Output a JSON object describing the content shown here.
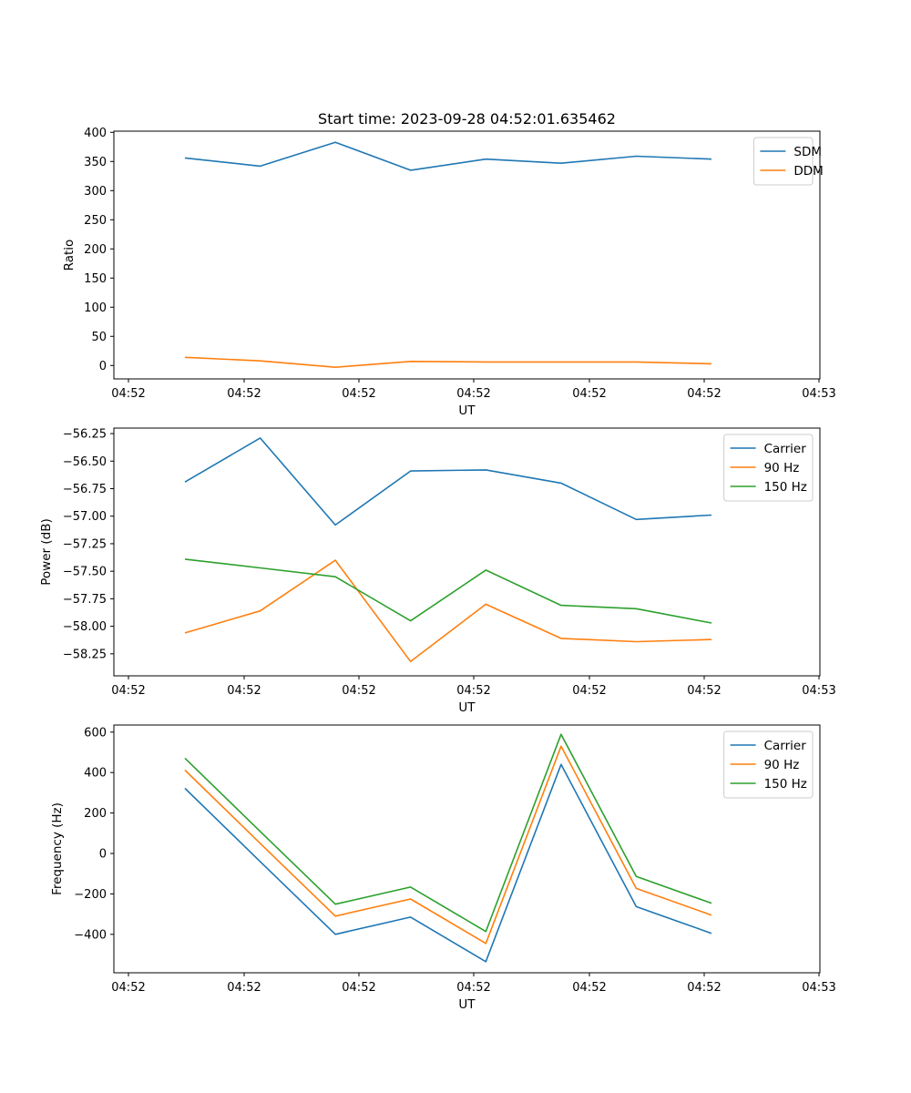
{
  "figure": {
    "title": "Start time: 2023-09-28 04:52:01.635462"
  },
  "x_ticks": [
    "04:52",
    "04:52",
    "04:52",
    "04:52",
    "04:52",
    "04:52",
    "04:53"
  ],
  "chart_data": [
    {
      "type": "line",
      "title": "Start time: 2023-09-28 04:52:01.635462",
      "xlabel": "UT",
      "ylabel": "Ratio",
      "xlim": [
        -0.2,
        8.8
      ],
      "ylim": [
        -23,
        402
      ],
      "x": [
        1,
        2,
        3,
        4,
        5,
        6,
        7,
        8
      ],
      "yticks": [
        0,
        50,
        100,
        150,
        200,
        250,
        300,
        350,
        400
      ],
      "ytick_labels": [
        "0",
        "50",
        "100",
        "150",
        "200",
        "250",
        "300",
        "350",
        "400"
      ],
      "legend_position": "top-right",
      "series": [
        {
          "name": "SDM",
          "color": "#1f77b4",
          "values": [
            356,
            342,
            383,
            335,
            354,
            347,
            359,
            354
          ]
        },
        {
          "name": "DDM",
          "color": "#ff7f0e",
          "values": [
            14,
            8,
            -3,
            7,
            6,
            6,
            6,
            3
          ]
        }
      ]
    },
    {
      "type": "line",
      "title": "",
      "xlabel": "UT",
      "ylabel": "Power (dB)",
      "xlim": [
        -0.2,
        8.8
      ],
      "ylim": [
        -58.45,
        -56.2
      ],
      "x": [
        1,
        2,
        3,
        4,
        5,
        6,
        7,
        8
      ],
      "yticks": [
        -56.25,
        -56.5,
        -56.75,
        -57.0,
        -57.25,
        -57.5,
        -57.75,
        -58.0,
        -58.25
      ],
      "ytick_labels": [
        "−56.25",
        "−56.50",
        "−56.75",
        "−57.00",
        "−57.25",
        "−57.50",
        "−57.75",
        "−58.00",
        "−58.25"
      ],
      "legend_position": "top-right",
      "series": [
        {
          "name": "Carrier",
          "color": "#1f77b4",
          "values": [
            -56.69,
            -56.29,
            -57.08,
            -56.59,
            -56.58,
            -56.7,
            -57.03,
            -56.99
          ]
        },
        {
          "name": "90 Hz",
          "color": "#ff7f0e",
          "values": [
            -58.06,
            -57.86,
            -57.4,
            -58.32,
            -57.8,
            -58.11,
            -58.14,
            -58.12
          ]
        },
        {
          "name": "150 Hz",
          "color": "#2ca02c",
          "values": [
            -57.39,
            -57.47,
            -57.55,
            -57.95,
            -57.49,
            -57.81,
            -57.84,
            -57.97
          ]
        }
      ]
    },
    {
      "type": "line",
      "title": "",
      "xlabel": "UT",
      "ylabel": "Frequency (Hz)",
      "xlim": [
        -0.2,
        8.8
      ],
      "ylim": [
        -590,
        635
      ],
      "x": [
        1,
        2,
        3,
        4,
        5,
        6,
        7,
        8
      ],
      "yticks": [
        600,
        400,
        200,
        0,
        -200,
        -400
      ],
      "ytick_labels": [
        "600",
        "400",
        "200",
        "0",
        "−200",
        "−400"
      ],
      "legend_position": "top-right",
      "series": [
        {
          "name": "Carrier",
          "color": "#1f77b4",
          "values": [
            322,
            -40,
            -400,
            -315,
            -535,
            440,
            -263,
            -395
          ]
        },
        {
          "name": "90 Hz",
          "color": "#ff7f0e",
          "values": [
            412,
            50,
            -310,
            -225,
            -445,
            530,
            -173,
            -305
          ]
        },
        {
          "name": "150 Hz",
          "color": "#2ca02c",
          "values": [
            471,
            109,
            -251,
            -166,
            -386,
            589,
            -114,
            -246
          ]
        }
      ]
    }
  ]
}
